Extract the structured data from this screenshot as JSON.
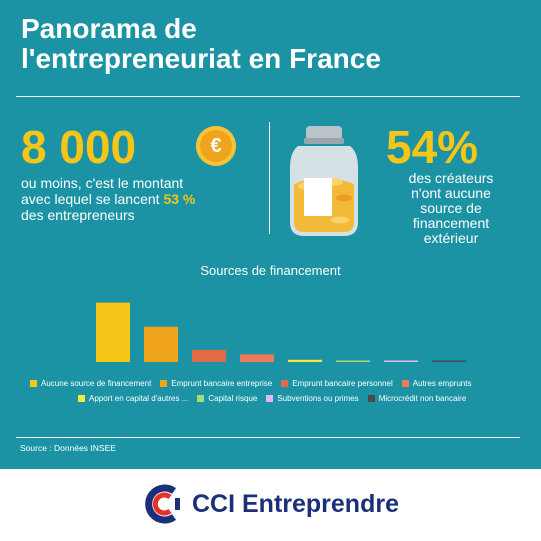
{
  "title_line1": "Panorama de",
  "title_line2": "l'entrepreneuriat en France",
  "left_stat": {
    "value": "8 000",
    "currency": "€",
    "line1": "ou moins, c'est le montant",
    "line2_pre": "avec lequel se lancent ",
    "line2_hl": "53 %",
    "line3": "des entrepreneurs"
  },
  "right_stat": {
    "value": "54%",
    "lines": [
      "des créateurs",
      "n'ont aucune",
      "source de",
      "financement",
      "extérieur"
    ]
  },
  "chart_data": {
    "type": "bar",
    "title": "Sources de financement",
    "categories": [
      "Aucune source de financement",
      "Emprunt bancaire entreprise",
      "Emprunt bancaire personnel",
      "Autres emprunts",
      "Apport en capital d'autres ...",
      "Capital risque",
      "Subventions ou primes",
      "Microcrédit non bancaire"
    ],
    "values": [
      54,
      32,
      11,
      7,
      2,
      1,
      0.6,
      0.8
    ],
    "colors": [
      "#f5c518",
      "#f0a41c",
      "#e06b47",
      "#ee7a5a",
      "#f2ea3c",
      "#a6dd7a",
      "#e4b9e8",
      "#4a4a4a"
    ],
    "ylim": [
      0,
      60
    ],
    "legend_position": "bottom",
    "grid": false
  },
  "source": "Source : Données INSEE",
  "brand": "CCI Entreprendre"
}
